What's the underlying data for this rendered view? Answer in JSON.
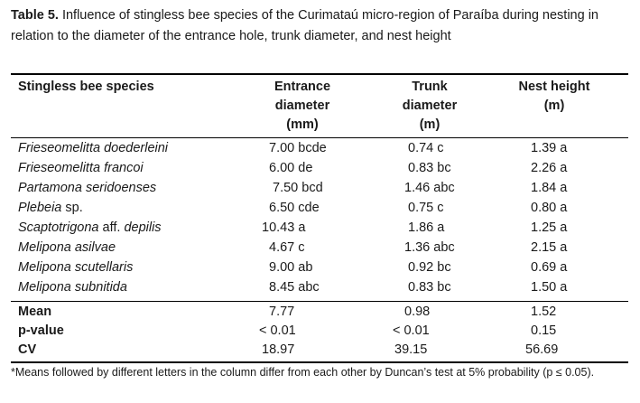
{
  "caption": {
    "label": "Table 5.",
    "text": "Influence of stingless bee species of the Curimataú micro-region of Paraíba during nesting in relation to the diameter of the entrance hole, trunk diameter, and nest height"
  },
  "table": {
    "headers": {
      "species": "Stingless bee species",
      "entrance_l1": "Entrance",
      "entrance_l2": "diameter",
      "entrance_l3": "(mm)",
      "trunk_l1": "Trunk",
      "trunk_l2": "diameter",
      "trunk_l3": "(m)",
      "nest_l1": "Nest height",
      "nest_l2": "(m)"
    },
    "rows": [
      {
        "species": "Frieseomelitta doederleini",
        "species_suffix": "",
        "entrance": "7.00 bcde",
        "trunk": "0.74 c",
        "nest": "1.39 a"
      },
      {
        "species": "Frieseomelitta francoi",
        "species_suffix": "",
        "entrance": "6.00 de",
        "trunk": "0.83 bc",
        "nest": "2.26 a"
      },
      {
        "species": "Partamona seridoenses",
        "species_suffix": "",
        "entrance": "7.50 bcd",
        "trunk": "1.46 abc",
        "nest": "1.84 a"
      },
      {
        "species": "Plebeia",
        "species_suffix": " sp.",
        "entrance": "6.50 cde",
        "trunk": "0.75 c",
        "nest": "0.80 a"
      },
      {
        "species": "Scaptotrigona",
        "species_suffix": " aff. ",
        "species_tail": "depilis",
        "entrance": "10.43 a",
        "trunk": "1.86 a",
        "nest": "1.25 a"
      },
      {
        "species": "Melipona asilvae",
        "species_suffix": "",
        "entrance": "4.67 c",
        "trunk": "1.36 abc",
        "nest": "2.15 a"
      },
      {
        "species": "Melipona scutellaris",
        "species_suffix": "",
        "entrance": "9.00 ab",
        "trunk": "0.92 bc",
        "nest": "0.69 a"
      },
      {
        "species": "Melipona subnitida",
        "species_suffix": "",
        "entrance": "8.45 abc",
        "trunk": "0.83 bc",
        "nest": "1.50 a"
      }
    ],
    "summary": [
      {
        "label": "Mean",
        "entrance": "7.77",
        "trunk": "0.98",
        "nest": "1.52"
      },
      {
        "label": "p-value",
        "entrance": "< 0.01",
        "trunk": "< 0.01",
        "nest": "0.15"
      },
      {
        "label": "CV",
        "entrance": "18.97",
        "trunk": "39.15",
        "nest": "56.69"
      }
    ]
  },
  "footnote": "*Means followed by different letters in the column differ from each other by Duncan’s test at 5% probability (p ≤ 0.05)."
}
